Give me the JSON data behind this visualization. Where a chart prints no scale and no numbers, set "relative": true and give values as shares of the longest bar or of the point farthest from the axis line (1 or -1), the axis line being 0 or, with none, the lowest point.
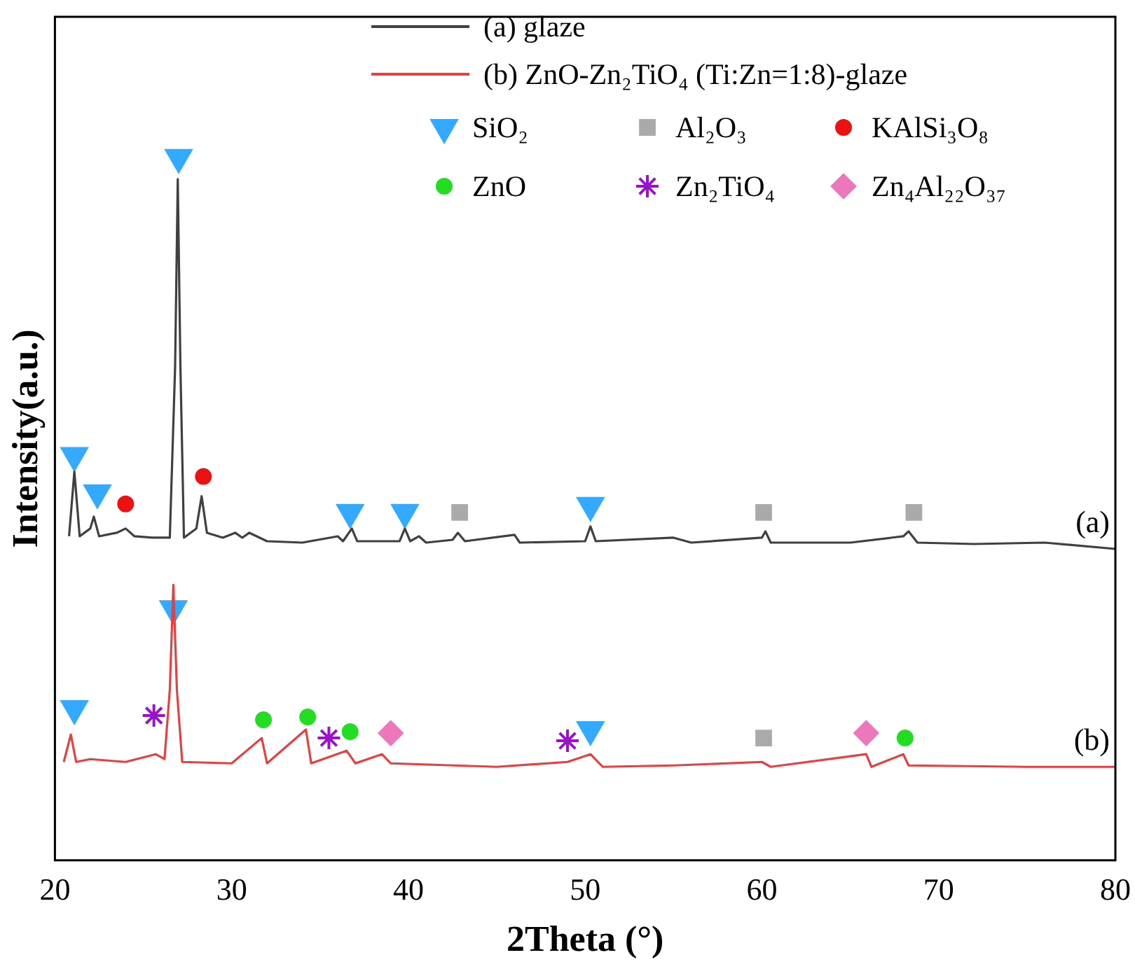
{
  "chart_data": {
    "type": "line",
    "relative": true,
    "xlabel": "2Theta (°)",
    "ylabel": "Intensity(a.u.)",
    "xlim": [
      20,
      80
    ],
    "xticks": [
      20,
      30,
      40,
      50,
      60,
      70,
      80
    ],
    "legend": "top",
    "grid": false,
    "series": [
      {
        "name": "(a) glaze",
        "color": "#404040",
        "x": [
          20.8,
          21.1,
          21.4,
          22,
          22.2,
          22.5,
          23.5,
          24,
          24.5,
          25.5,
          26.5,
          26.8,
          26.95,
          27.1,
          27.3,
          28,
          28.3,
          28.6,
          29.5,
          30.2,
          30.6,
          31,
          32,
          34,
          36,
          36.3,
          36.8,
          37.1,
          39.5,
          39.8,
          40.1,
          40.6,
          41,
          42.5,
          42.8,
          43.2,
          46,
          46.3,
          50,
          50.3,
          50.6,
          55,
          56,
          60,
          60.2,
          60.5,
          65,
          68,
          68.3,
          68.8,
          72,
          76,
          80
        ],
        "values": [
          0.461,
          0.553,
          0.461,
          0.472,
          0.489,
          0.461,
          0.466,
          0.472,
          0.461,
          0.459,
          0.459,
          0.702,
          0.969,
          0.702,
          0.459,
          0.472,
          0.518,
          0.466,
          0.459,
          0.466,
          0.459,
          0.466,
          0.454,
          0.452,
          0.461,
          0.454,
          0.472,
          0.454,
          0.454,
          0.472,
          0.454,
          0.461,
          0.452,
          0.456,
          0.466,
          0.454,
          0.463,
          0.452,
          0.454,
          0.475,
          0.454,
          0.459,
          0.452,
          0.459,
          0.468,
          0.452,
          0.452,
          0.461,
          0.468,
          0.452,
          0.45,
          0.452,
          0.443
        ]
      },
      {
        "name": "(b) ZnO-Zn₂TiO₄ (Ti:Zn=1:8)-glaze",
        "color": "#e84040",
        "x": [
          20.5,
          20.9,
          21.2,
          22,
          24,
          25.7,
          26.2,
          26.5,
          26.7,
          26.9,
          27.2,
          30,
          31.7,
          32,
          34.2,
          34.5,
          36.5,
          37,
          38.5,
          39,
          45,
          49,
          50.3,
          51,
          55,
          60,
          60.5,
          65.9,
          66.2,
          68,
          68.3,
          75,
          80
        ],
        "values": [
          0.14,
          0.179,
          0.14,
          0.144,
          0.14,
          0.151,
          0.144,
          0.243,
          0.392,
          0.243,
          0.14,
          0.138,
          0.174,
          0.138,
          0.186,
          0.138,
          0.156,
          0.138,
          0.151,
          0.138,
          0.133,
          0.14,
          0.151,
          0.133,
          0.135,
          0.14,
          0.133,
          0.151,
          0.133,
          0.151,
          0.135,
          0.133,
          0.133
        ]
      },
      {
        "name": "SiO₂",
        "type": "scatter",
        "marker": "triangle",
        "color": "#33aaff",
        "x": [
          21.1,
          22.4,
          27,
          36.7,
          39.8,
          50.3,
          21.1,
          26.7,
          50.3
        ],
        "values": [
          0.576,
          0.523,
          1,
          0.495,
          0.495,
          0.505,
          0.216,
          0.358,
          0.186
        ]
      },
      {
        "name": "Al₂O₃",
        "type": "scatter",
        "marker": "square",
        "color": "#aaaaaa",
        "x": [
          42.9,
          60.1,
          68.6,
          60.1
        ],
        "values": [
          0.495,
          0.495,
          0.495,
          0.174
        ]
      },
      {
        "name": "KAlSi₃O₈",
        "type": "scatter",
        "marker": "circle",
        "color": "#ee1111",
        "x": [
          24,
          28.4
        ],
        "values": [
          0.507,
          0.546
        ]
      },
      {
        "name": "ZnO",
        "type": "scatter",
        "marker": "circle",
        "color": "#22dd22",
        "x": [
          31.8,
          34.3,
          36.7,
          68.1
        ],
        "values": [
          0.2,
          0.204,
          0.183,
          0.174
        ]
      },
      {
        "name": "Zn₂TiO₄",
        "type": "scatter",
        "marker": "cross",
        "color": "#9911cc",
        "x": [
          25.6,
          35.5,
          49
        ],
        "values": [
          0.206,
          0.174,
          0.17
        ]
      },
      {
        "name": "Zn₄Al₂₂O₃₇",
        "type": "scatter",
        "marker": "diamond",
        "color": "#ee77bb",
        "x": [
          39,
          65.9
        ],
        "values": [
          0.181,
          0.181
        ]
      }
    ],
    "annotations": [
      "(a)",
      "(b)"
    ]
  }
}
